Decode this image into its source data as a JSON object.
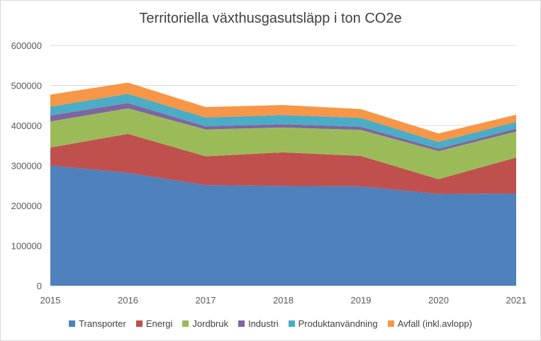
{
  "chart_data": {
    "type": "area",
    "stacked": true,
    "title": "Territoriella växthusgasutsläpp i ton CO2e",
    "xlabel": "",
    "ylabel": "",
    "x": [
      "2015",
      "2016",
      "2017",
      "2018",
      "2019",
      "2020",
      "2021"
    ],
    "ylim": [
      0,
      600000
    ],
    "yticks": [
      "0",
      "100000",
      "200000",
      "300000",
      "400000",
      "500000",
      "600000"
    ],
    "grid": true,
    "legend_position": "bottom",
    "series": [
      {
        "name": "Transporter",
        "color": "#4f81bd",
        "values": [
          300000,
          282000,
          251000,
          249000,
          248000,
          229000,
          230000
        ]
      },
      {
        "name": "Energi",
        "color": "#c0504d",
        "values": [
          45000,
          97000,
          72000,
          84000,
          76000,
          37000,
          90000
        ]
      },
      {
        "name": "Jordbruk",
        "color": "#9bbb59",
        "values": [
          65000,
          64000,
          67000,
          62000,
          65000,
          70000,
          65000
        ]
      },
      {
        "name": "Industri",
        "color": "#8064a2",
        "values": [
          15000,
          13000,
          8000,
          8000,
          8000,
          6000,
          7000
        ]
      },
      {
        "name": "Produktanvändning",
        "color": "#4bacc6",
        "values": [
          22000,
          23000,
          22000,
          23000,
          22000,
          17000,
          17000
        ]
      },
      {
        "name": "Avfall (inkl.avlopp)",
        "color": "#f79646",
        "values": [
          30000,
          28000,
          26000,
          25000,
          22000,
          21000,
          18000
        ]
      }
    ]
  }
}
